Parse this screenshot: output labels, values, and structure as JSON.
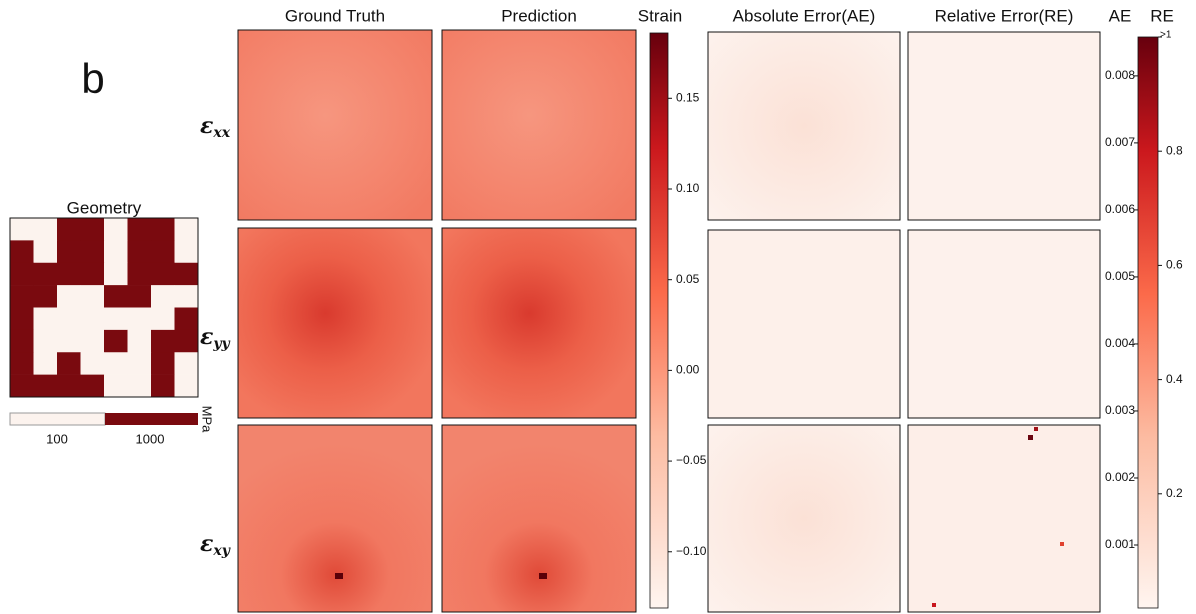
{
  "panel_label": "b",
  "geometry": {
    "title": "Geometry",
    "cells": [
      [
        0,
        0,
        1,
        1,
        0,
        1,
        1,
        0
      ],
      [
        1,
        0,
        1,
        1,
        0,
        1,
        1,
        0
      ],
      [
        1,
        1,
        1,
        1,
        0,
        1,
        1,
        1
      ],
      [
        1,
        1,
        0,
        0,
        1,
        1,
        0,
        0
      ],
      [
        1,
        0,
        0,
        0,
        0,
        0,
        0,
        1
      ],
      [
        1,
        0,
        0,
        0,
        1,
        0,
        1,
        1
      ],
      [
        1,
        0,
        1,
        0,
        0,
        0,
        1,
        0
      ],
      [
        1,
        1,
        1,
        1,
        0,
        0,
        1,
        0
      ]
    ],
    "colors": [
      "#fcf3ee",
      "#7a0a0f"
    ],
    "legend": {
      "labels": [
        "100",
        "1000"
      ],
      "unit": "MPa"
    }
  },
  "columns": [
    "Ground Truth",
    "Prediction",
    "Strain",
    "Absolute Error(AE)",
    "Relative Error(RE)",
    "AE",
    "RE"
  ],
  "rows": [
    {
      "symbol": "ε",
      "subscript": "xx"
    },
    {
      "symbol": "ε",
      "subscript": "yy"
    },
    {
      "symbol": "ε",
      "subscript": "xy"
    }
  ],
  "colorbars": [
    {
      "name": "Strain",
      "ylim": [
        -0.131,
        0.186
      ],
      "yticks": [
        {
          "value": -0.1,
          "label": "−0.10"
        },
        {
          "value": -0.05,
          "label": "−0.05"
        },
        {
          "value": 0,
          "label": "0.00"
        },
        0.05,
        {
          "value": 0.1,
          "label": "0.10"
        },
        0.15
      ],
      "side": "right"
    },
    {
      "name": "AE",
      "ylim": [
        6e-05,
        0.00858
      ],
      "yticks": [
        0.001,
        0.002,
        0.003,
        0.004,
        0.005,
        0.006,
        0.007,
        0.008
      ],
      "side": "left"
    },
    {
      "name": "RE",
      "ylim": [
        0,
        1
      ],
      "yticks": [
        0.2,
        0.4,
        0.6,
        0.8,
        {
          "value": 1,
          "label": ">1"
        }
      ],
      "side": "right"
    }
  ]
}
